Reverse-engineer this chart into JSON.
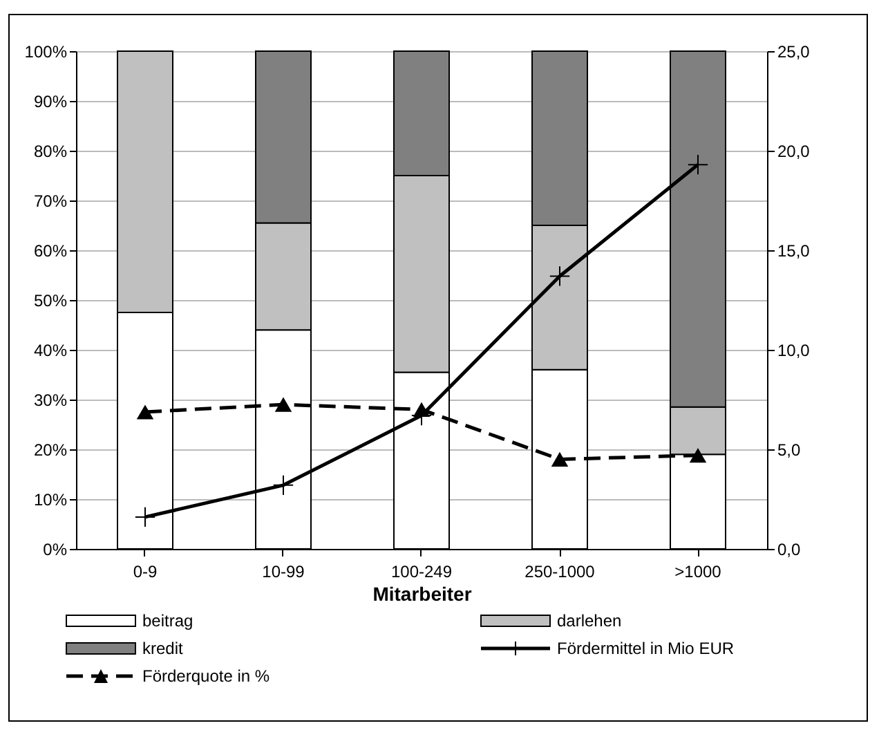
{
  "chart_data": {
    "type": "bar",
    "stacked": true,
    "xlabel": "Mitarbeiter",
    "categories": [
      "0-9",
      "10-99",
      "100-249",
      "250-1000",
      ">1000"
    ],
    "series": [
      {
        "name": "beitrag",
        "color": "#ffffff",
        "values": [
          47.5,
          44,
          35.5,
          36,
          19
        ]
      },
      {
        "name": "darlehen",
        "color": "#c0c0c0",
        "values": [
          52.5,
          21.5,
          39.5,
          29,
          9.5
        ]
      },
      {
        "name": "kredit",
        "color": "#808080",
        "values": [
          0,
          34.5,
          25,
          35,
          71.5
        ]
      },
      {
        "name": "Fördermittel in Mio EUR",
        "type": "line",
        "axis": "y2",
        "color": "#000000",
        "marker": "cross",
        "line_style": "solid",
        "values": [
          1.6,
          3.2,
          6.7,
          13.7,
          19.3
        ]
      },
      {
        "name": "Förderquote in %",
        "type": "line",
        "color": "#000000",
        "marker": "triangle",
        "line_style": "dashed",
        "values": [
          27.5,
          29,
          28,
          18,
          18.8
        ]
      }
    ],
    "ylim": [
      0,
      100
    ],
    "yticks": [
      {
        "value": 0,
        "label": "0%"
      },
      {
        "value": 10,
        "label": "10%"
      },
      {
        "value": 20,
        "label": "20%"
      },
      {
        "value": 30,
        "label": "30%"
      },
      {
        "value": 40,
        "label": "40%"
      },
      {
        "value": 50,
        "label": "50%"
      },
      {
        "value": 60,
        "label": "60%"
      },
      {
        "value": 70,
        "label": "70%"
      },
      {
        "value": 80,
        "label": "80%"
      },
      {
        "value": 90,
        "label": "90%"
      },
      {
        "value": 100,
        "label": "100%"
      }
    ],
    "y2lim": [
      0,
      25
    ],
    "y2ticks": [
      {
        "value": 0,
        "label": "0,0"
      },
      {
        "value": 5,
        "label": "5,0"
      },
      {
        "value": 10,
        "label": "10,0"
      },
      {
        "value": 15,
        "label": "15,0"
      },
      {
        "value": 20,
        "label": "20,0"
      },
      {
        "value": 25,
        "label": "25,0"
      }
    ],
    "grid": "y",
    "legend": "bottom"
  }
}
